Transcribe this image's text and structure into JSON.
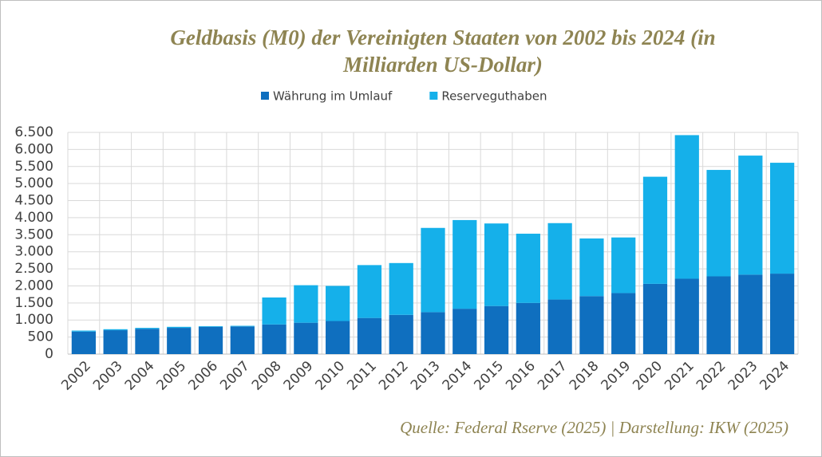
{
  "chart_data": {
    "type": "stacked_bar",
    "title": "Geldbasis (M0) der Vereinigten Staaten von 2002 bis 2024 (in Milliarden US-Dollar)",
    "source": "Quelle: Federal Rserve (2025) | Darstellung: IKW (2025)",
    "categories": [
      "2002",
      "2003",
      "2004",
      "2005",
      "2006",
      "2007",
      "2008",
      "2009",
      "2010",
      "2011",
      "2012",
      "2013",
      "2014",
      "2015",
      "2016",
      "2017",
      "2018",
      "2019",
      "2020",
      "2021",
      "2022",
      "2023",
      "2024"
    ],
    "series": [
      {
        "name": "Währung im Umlauf",
        "color": "#0f6fbf",
        "values": [
          660,
          700,
          740,
          770,
          800,
          810,
          870,
          920,
          970,
          1060,
          1150,
          1230,
          1330,
          1410,
          1500,
          1600,
          1700,
          1790,
          2060,
          2210,
          2280,
          2330,
          2360
        ]
      },
      {
        "name": "Reserveguthaben",
        "color": "#15b0ea",
        "values": [
          30,
          30,
          30,
          30,
          20,
          20,
          790,
          1100,
          1030,
          1550,
          1520,
          2470,
          2600,
          2420,
          2030,
          2240,
          1690,
          1630,
          3140,
          4210,
          3120,
          3490,
          3250
        ]
      }
    ],
    "ylim": [
      0,
      6500
    ],
    "yticks": [
      0,
      500,
      {
        "value": 1000,
        "label": "1.000"
      },
      {
        "value": 1500,
        "label": "1.500"
      },
      {
        "value": 2000,
        "label": "2.000"
      },
      {
        "value": 2500,
        "label": "2.500"
      },
      {
        "value": 3000,
        "label": "3.000"
      },
      {
        "value": 3500,
        "label": "3.500"
      },
      {
        "value": 4000,
        "label": "4.000"
      },
      {
        "value": 4500,
        "label": "4.500"
      },
      {
        "value": 5000,
        "label": "5.000"
      },
      {
        "value": 5500,
        "label": "5.500"
      },
      {
        "value": 6000,
        "label": "6.000"
      },
      {
        "value": 6500,
        "label": "6.500"
      }
    ],
    "grid": true,
    "legend": "top"
  }
}
